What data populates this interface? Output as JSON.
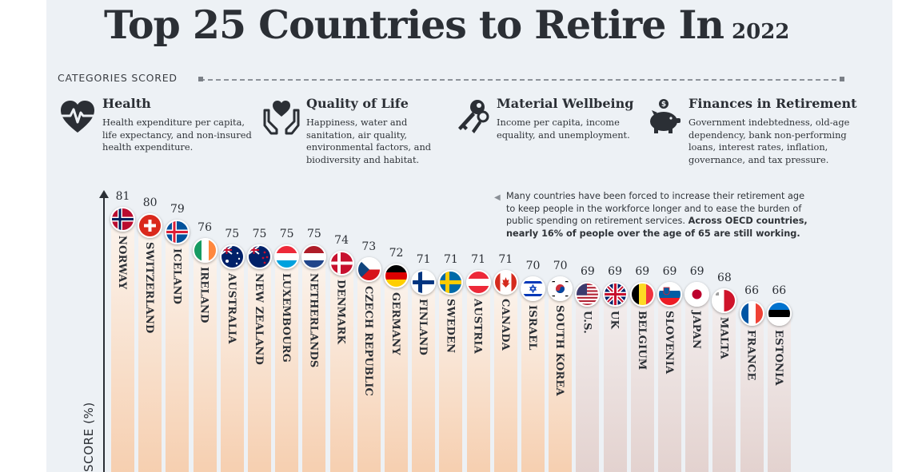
{
  "title": "Top 25 Countries to Retire In",
  "year": "2022",
  "categories_label": "CATEGORIES SCORED",
  "categories": [
    {
      "name": "Health",
      "icon": "heart-pulse-icon",
      "desc": "Health expenditure per capita, life expectancy, and non-insured health expenditure."
    },
    {
      "name": "Quality of Life",
      "icon": "hands-heart-icon",
      "desc": "Happiness, water and sanitation, air quality, environmental factors, and biodiversity and habitat."
    },
    {
      "name": "Material Wellbeing",
      "icon": "keys-icon",
      "desc": "Income per capita, income equality, and unemployment."
    },
    {
      "name": "Finances in Retirement",
      "icon": "piggy-bank-icon",
      "desc": "Government indebtedness, old-age dependency, bank non-performing loans, interest rates, inflation, governance, and tax pressure."
    }
  ],
  "note": {
    "text": "Many countries have been forced to increase their retirement age to keep people in the workforce longer and to ease the burden of public spending on retirement services. ",
    "bold": "Across OECD countries, nearly 16% of people over the age of 65 are still working."
  },
  "colors": {
    "bar_top": "#fbf4ee",
    "bar_bottom": "#f6cfb0",
    "bar_gray_bottom": "#e3d2cf",
    "text": "#2b2f35",
    "background": "#edf1f5"
  },
  "chart_data": {
    "type": "bar",
    "title": "Top 25 Countries to Retire In",
    "xlabel": "",
    "ylabel": "SCORE (%)",
    "ylim": [
      0,
      100
    ],
    "categories": [
      "NORWAY",
      "SWITZERLAND",
      "ICELAND",
      "IRELAND",
      "AUSTRALIA",
      "NEW ZEALAND",
      "LUXEMBOURG",
      "NETHERLANDS",
      "DENMARK",
      "CZECH REPUBLIC",
      "GERMANY",
      "FINLAND",
      "SWEDEN",
      "AUSTRIA",
      "CANADA",
      "ISRAEL",
      "SOUTH KOREA",
      "U.S.",
      "UK",
      "BELGIUM",
      "SLOVENIA",
      "JAPAN",
      "MALTA",
      "FRANCE",
      "ESTONIA"
    ],
    "values": [
      81,
      80,
      79,
      76,
      75,
      75,
      75,
      75,
      74,
      73,
      72,
      71,
      71,
      71,
      71,
      70,
      70,
      69,
      69,
      69,
      69,
      69,
      68,
      66,
      66
    ],
    "flags": [
      "norway",
      "switzerland",
      "iceland",
      "ireland",
      "australia",
      "new-zealand",
      "luxembourg",
      "netherlands",
      "denmark",
      "czech-republic",
      "germany",
      "finland",
      "sweden",
      "austria",
      "canada",
      "israel",
      "south-korea",
      "us",
      "uk",
      "belgium",
      "slovenia",
      "japan",
      "malta",
      "france",
      "estonia"
    ]
  }
}
